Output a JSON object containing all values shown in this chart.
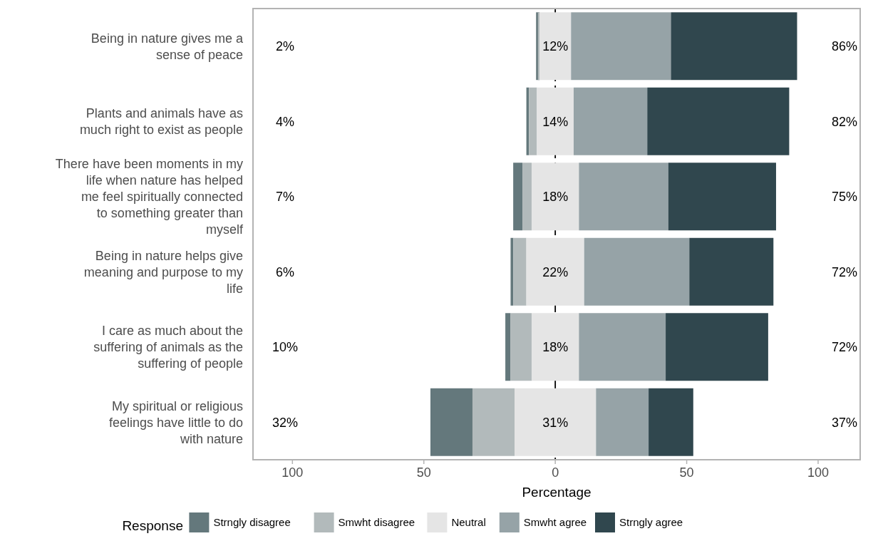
{
  "chart_data": {
    "type": "bar",
    "orientation": "horizontal",
    "categories": [
      "Being in nature gives me a sense of peace",
      "Plants and animals have as much right to exist as people",
      "There have been moments in my life when nature has helped me feel spiritually connected to something greater than myself",
      "Being in nature helps give meaning and purpose to my life",
      "I care as much about the suffering of animals as the suffering of people",
      "My spiritual or religious feelings have little to do with nature"
    ],
    "series": [
      {
        "name": "Strngly disagree",
        "color": "#64787c",
        "values": [
          1.3,
          1,
          3.5,
          1,
          2,
          16
        ],
        "base": [
          -7.3,
          -11,
          -16,
          -17,
          -19,
          -47.5
        ]
      },
      {
        "name": "Smwht disagree",
        "color": "#b2babb",
        "values": [
          0.7,
          3,
          3.5,
          5,
          8,
          16
        ],
        "base": [
          -6.6,
          -10,
          -12.5,
          -16,
          -17,
          -31.5
        ]
      },
      {
        "name": "Neutral",
        "color": "#e5e5e5",
        "values": [
          12,
          14,
          18,
          22,
          18,
          31
        ],
        "base": [
          -6,
          -7,
          -9,
          -11,
          -9,
          -15.5
        ],
        "value_labels": [
          "12%",
          "14%",
          "18%",
          "22%",
          "18%",
          "31%"
        ]
      },
      {
        "name": "Smwht agree",
        "color": "#96a3a7",
        "values": [
          38,
          28,
          34,
          40,
          33,
          20
        ],
        "base": [
          6,
          7,
          9,
          11,
          9,
          15.5
        ]
      },
      {
        "name": "Strngly agree",
        "color": "#30474e",
        "values": [
          48,
          54,
          41,
          32,
          39,
          17
        ],
        "base": [
          44,
          35,
          43,
          51,
          42,
          35.5
        ]
      }
    ],
    "xlabel": "Percentage",
    "legend_title": "Response",
    "legend": "bottom",
    "xlim": [
      -115,
      116
    ],
    "xticks": [
      {
        "value": -100,
        "label": "100"
      },
      {
        "value": -50,
        "label": "50"
      },
      0,
      50,
      100
    ],
    "ref_lines": [
      {
        "axis": "x",
        "value": 0,
        "color": "#000000",
        "line_style": "dashed"
      }
    ],
    "annotations": [
      "2%",
      "86%",
      "4%",
      "82%",
      "7%",
      "75%",
      "6%",
      "72%",
      "10%",
      "72%",
      "32%",
      "37%"
    ]
  }
}
